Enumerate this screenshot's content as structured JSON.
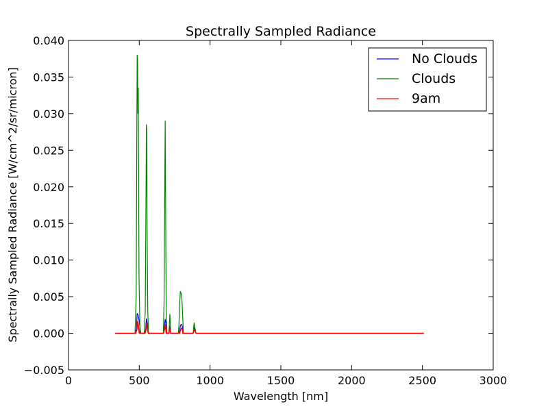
{
  "chart_data": {
    "type": "line",
    "title": "Spectrally Sampled Radiance",
    "xlabel": "Wavelength [nm]",
    "ylabel": "Spectrally Sampled Radiance [W/cm^2/sr/micron]",
    "xlim": [
      0,
      3000
    ],
    "ylim": [
      -0.005,
      0.04
    ],
    "xticks": [
      0,
      500,
      1000,
      1500,
      2000,
      2500,
      3000
    ],
    "xtick_labels": [
      "0",
      "500",
      "1000",
      "1500",
      "2000",
      "2500",
      "3000"
    ],
    "yticks": [
      -0.005,
      0.0,
      0.005,
      0.01,
      0.015,
      0.02,
      0.025,
      0.03,
      0.035,
      0.04
    ],
    "ytick_labels": [
      "−0.005",
      "0.000",
      "0.005",
      "0.010",
      "0.015",
      "0.020",
      "0.025",
      "0.030",
      "0.035",
      "0.040"
    ],
    "grid": false,
    "legend_position": "top-right",
    "series": [
      {
        "name": "No Clouds",
        "color": "#0000ff",
        "x": [
          330,
          470,
          480,
          485,
          490,
          495,
          500,
          510,
          535,
          545,
          550,
          555,
          565,
          670,
          678,
          683,
          688,
          695,
          708,
          713,
          718,
          723,
          780,
          785,
          790,
          795,
          800,
          805,
          810,
          880,
          885,
          890,
          895,
          900,
          2510
        ],
        "y": [
          0,
          0,
          0.0006,
          0.0027,
          0.0026,
          0.0022,
          0.0015,
          0,
          0,
          0.0005,
          0.002,
          0.0015,
          0,
          0,
          0.001,
          0.0019,
          0.0014,
          0,
          0,
          0.001,
          0.0006,
          0,
          0,
          0.0004,
          0.001,
          0.0012,
          0.0012,
          0.0008,
          0,
          0,
          0.0005,
          0.0008,
          0.0006,
          0,
          0
        ]
      },
      {
        "name": "Clouds",
        "color": "#008000",
        "x": [
          330,
          470,
          478,
          482,
          485,
          488,
          490,
          493,
          498,
          505,
          535,
          542,
          548,
          550,
          552,
          555,
          560,
          565,
          670,
          675,
          680,
          683,
          686,
          690,
          695,
          710,
          713,
          716,
          719,
          722,
          775,
          780,
          785,
          790,
          795,
          800,
          805,
          812,
          880,
          883,
          887,
          890,
          893,
          900,
          2510
        ],
        "y": [
          0,
          0,
          0.005,
          0.025,
          0.038,
          0.037,
          0.03,
          0.0335,
          0.008,
          0,
          0,
          0.003,
          0.02,
          0.0285,
          0.028,
          0.015,
          0.003,
          0,
          0,
          0.004,
          0.02,
          0.029,
          0.018,
          0.004,
          0,
          0,
          0.0015,
          0.0026,
          0.0015,
          0,
          0,
          0.001,
          0.004,
          0.0057,
          0.0055,
          0.005,
          0.003,
          0,
          0,
          0.0005,
          0.0014,
          0.0012,
          0.0006,
          0,
          0
        ]
      },
      {
        "name": "9am",
        "color": "#ff0000",
        "x": [
          330,
          475,
          483,
          488,
          493,
          500,
          540,
          547,
          551,
          556,
          563,
          672,
          680,
          684,
          690,
          710,
          714,
          718,
          722,
          785,
          792,
          797,
          802,
          808,
          880,
          886,
          890,
          895,
          900,
          2510
        ],
        "y": [
          0,
          0,
          0.0005,
          0.0016,
          0.0012,
          0,
          0,
          0.0004,
          0.0013,
          0.0008,
          0,
          0,
          0.0007,
          0.0012,
          0,
          0,
          0.0007,
          0.0004,
          0,
          0,
          0.0005,
          0.0007,
          0.0006,
          0,
          0,
          0.0003,
          0.0005,
          0.0003,
          0,
          0
        ]
      }
    ]
  }
}
